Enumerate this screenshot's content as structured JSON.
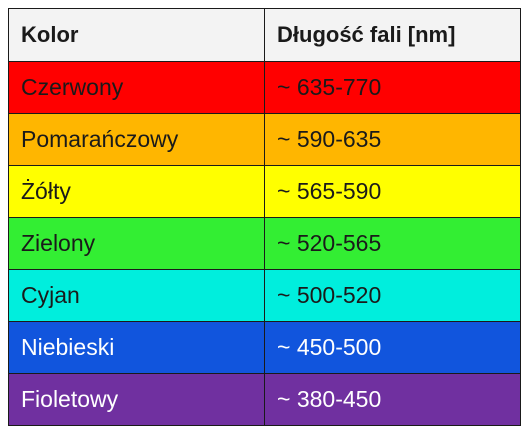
{
  "table": {
    "headers": [
      "Kolor",
      "Długość fali [nm]"
    ],
    "rows": [
      {
        "color": "Czerwony",
        "wavelength": "~ 635-770",
        "bg": "#ff0000",
        "fg": "#1a1a1a"
      },
      {
        "color": "Pomarańczowy",
        "wavelength": "~ 590-635",
        "bg": "#ffb600",
        "fg": "#1a1a1a"
      },
      {
        "color": "Żółty",
        "wavelength": "~ 565-590",
        "bg": "#ffff00",
        "fg": "#1a1a1a"
      },
      {
        "color": "Zielony",
        "wavelength": "~ 520-565",
        "bg": "#33ee33",
        "fg": "#1a1a1a"
      },
      {
        "color": "Cyjan",
        "wavelength": "~ 500-520",
        "bg": "#00eedd",
        "fg": "#1a1a1a"
      },
      {
        "color": "Niebieski",
        "wavelength": "~ 450-500",
        "bg": "#1155dd",
        "fg": "#ffffff"
      },
      {
        "color": "Fioletowy",
        "wavelength": "~ 380-450",
        "bg": "#7030a0",
        "fg": "#ffffff"
      }
    ]
  }
}
